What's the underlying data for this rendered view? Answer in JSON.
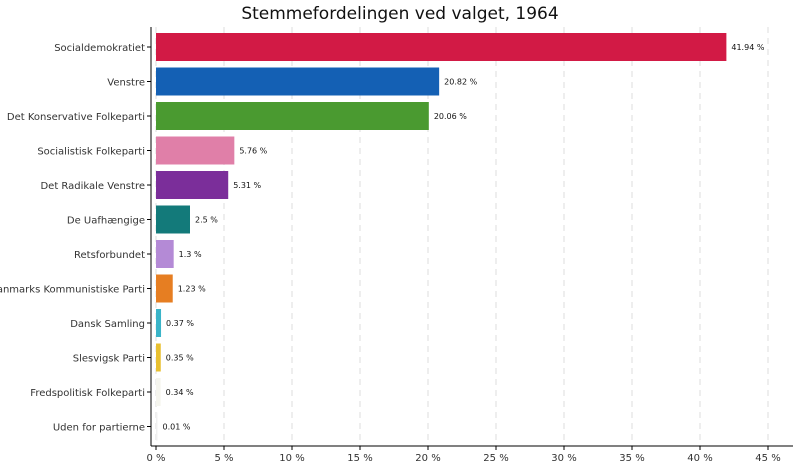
{
  "chart_data": {
    "type": "bar",
    "orientation": "horizontal",
    "title": "Stemmefordelingen ved valget, 1964",
    "categories": [
      "Socialdemokratiet",
      "Venstre",
      "Det Konservative Folkeparti",
      "Socialistisk Folkeparti",
      "Det Radikale Venstre",
      "De Uafhængige",
      "Retsforbundet",
      "Danmarks Kommunistiske Parti",
      "Dansk Samling",
      "Slesvigsk Parti",
      "Fredspolitisk Folkeparti",
      "Uden for partierne"
    ],
    "values": [
      41.94,
      20.82,
      20.06,
      5.76,
      5.31,
      2.5,
      1.3,
      1.23,
      0.37,
      0.35,
      0.34,
      0.01
    ],
    "value_labels": [
      "41.94 %",
      "20.82 %",
      "20.06 %",
      "5.76 %",
      "5.31 %",
      "2.5 %",
      "1.3 %",
      "1.23 %",
      "0.37 %",
      "0.35 %",
      "0.34 %",
      "0.01 %"
    ],
    "colors": [
      "#d21a45",
      "#1460b4",
      "#4a9a30",
      "#e07fa8",
      "#7b2e9a",
      "#137a7a",
      "#b48ad6",
      "#e67e22",
      "#3ab4c8",
      "#e8c030",
      "#f5f5ee",
      "#f0f0f0"
    ],
    "xlim": [
      0,
      46
    ],
    "xticks": [
      0,
      5,
      10,
      15,
      20,
      25,
      30,
      35,
      40,
      45
    ],
    "xtick_labels": [
      "0 %",
      "5 %",
      "10 %",
      "15 %",
      "20 %",
      "25 %",
      "30 %",
      "35 %",
      "40 %",
      "45 %"
    ],
    "xlabel": "",
    "ylabel": "",
    "grid": "vertical dashed"
  }
}
